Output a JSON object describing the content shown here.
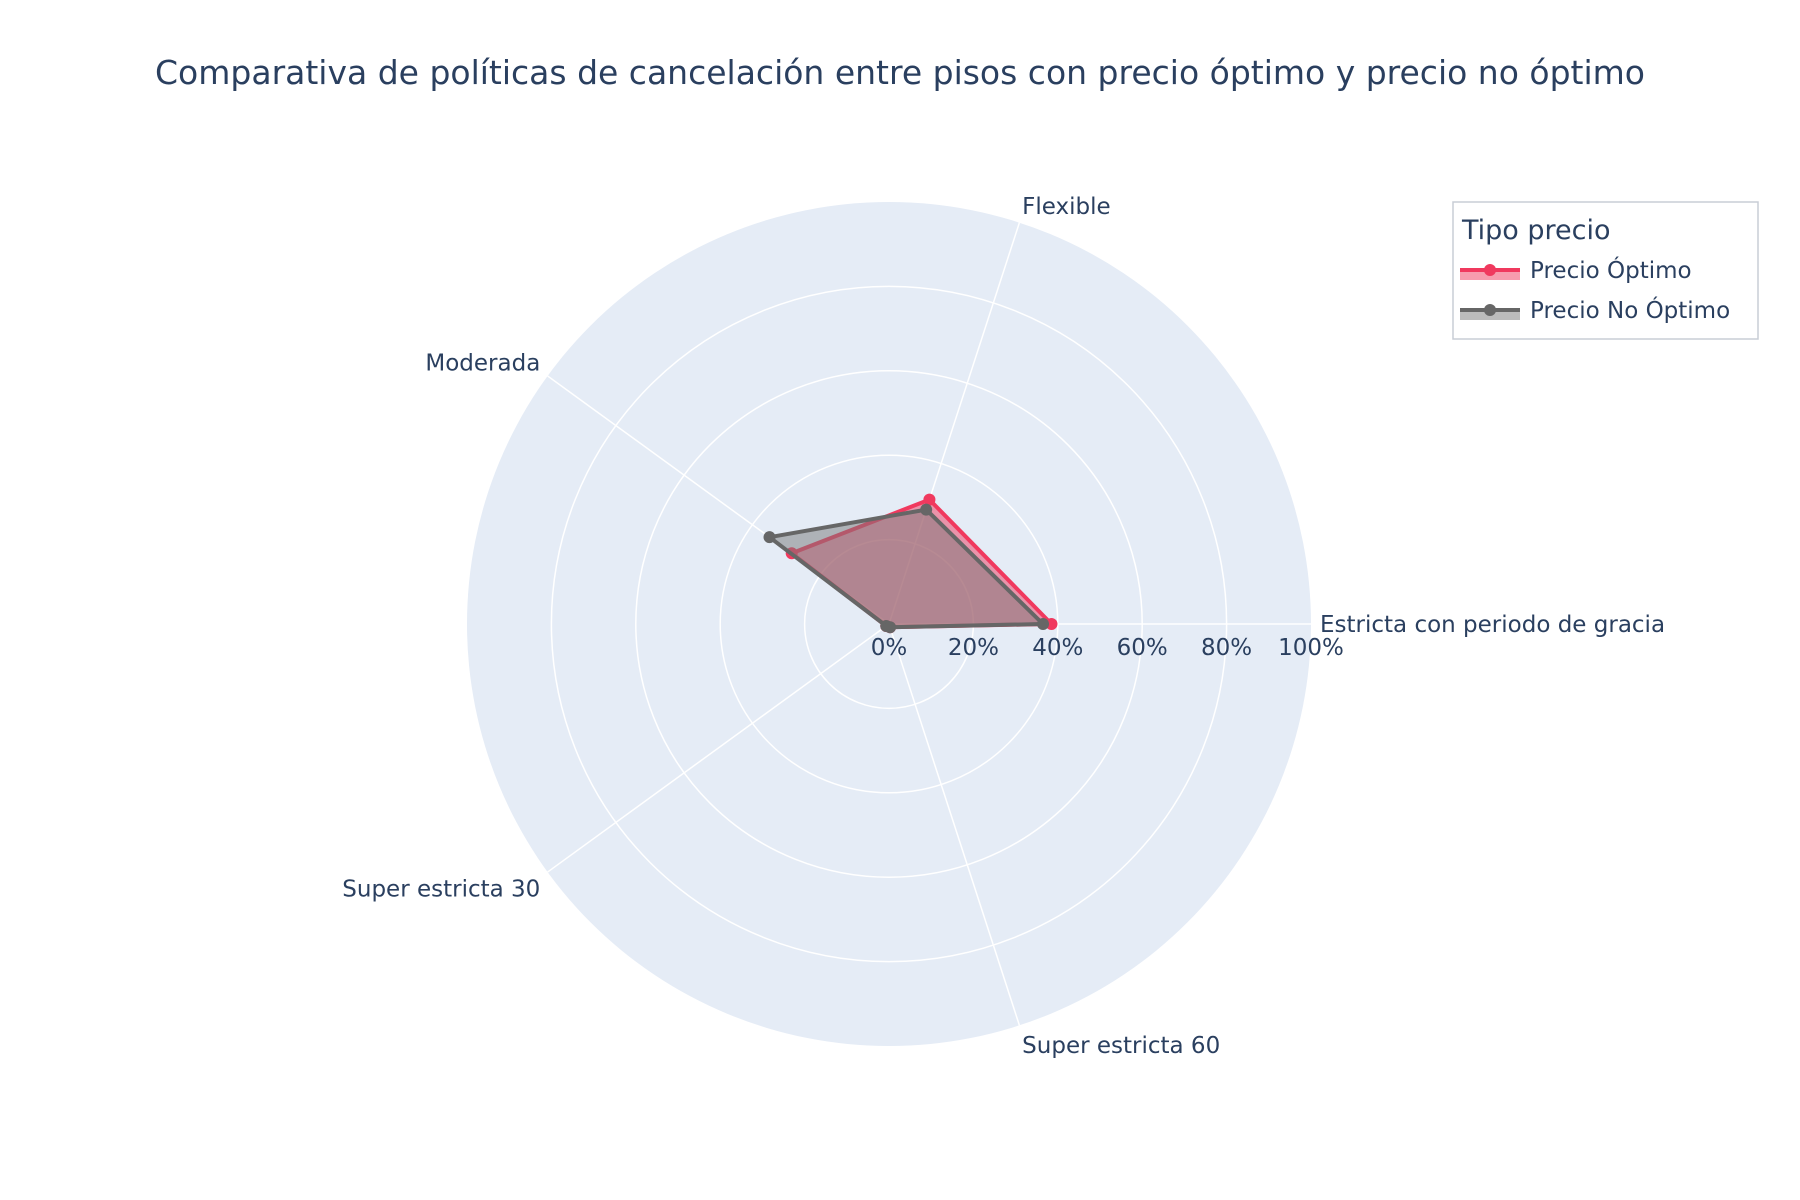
{
  "chart_data": {
    "type": "radar",
    "title": "Comparativa de políticas de cancelación entre pisos con precio óptimo y precio no óptimo",
    "categories": [
      "Estricta con periodo de gracia",
      "Flexible",
      "Moderada",
      "Super estricta 30",
      "Super estricta 60"
    ],
    "radial_range": [
      0,
      100
    ],
    "radial_ticks": [
      "0%",
      "20%",
      "40%",
      "60%",
      "80%",
      "100%"
    ],
    "radial_tick_values": [
      0,
      20,
      40,
      60,
      80,
      100
    ],
    "legend": {
      "title": "Tipo precio",
      "placement": "top-right"
    },
    "series": [
      {
        "name": "Precio Óptimo",
        "values": [
          38.5,
          31,
          28.5,
          0.8,
          0.8
        ],
        "line_color": "#f0395e",
        "fill_color": "#f0395e"
      },
      {
        "name": "Precio No Óptimo",
        "values": [
          36.5,
          28.5,
          35,
          0.8,
          0.8
        ],
        "line_color": "#666666",
        "fill_color": "#777777"
      }
    ]
  }
}
